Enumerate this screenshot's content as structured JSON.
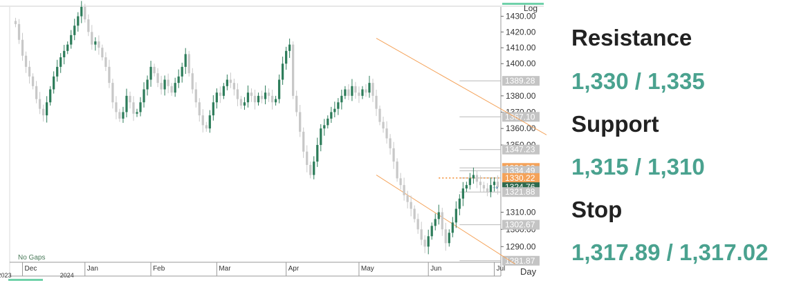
{
  "chart_data": {
    "type": "candlestick",
    "scale": "log",
    "ylim": [
      1281,
      1436
    ],
    "y_ticks": [
      "1430.00",
      "1420.00",
      "1410.00",
      "1400.00",
      "1380.00",
      "1370.00",
      "1360.00",
      "1350.00",
      "1310.00",
      "1300.00",
      "1290.00"
    ],
    "axis_corner_label": "Log",
    "x_ticks": [
      {
        "label": "Dec",
        "sub": "2023",
        "index": 2
      },
      {
        "label": "Jan",
        "sub": "2024",
        "index": 20
      },
      {
        "label": "Feb",
        "sub": "",
        "index": 39
      },
      {
        "label": "Mar",
        "sub": "",
        "index": 58
      },
      {
        "label": "Apr",
        "sub": "",
        "index": 78
      },
      {
        "label": "May",
        "sub": "",
        "index": 99
      },
      {
        "label": "Jun",
        "sub": "",
        "index": 119
      },
      {
        "label": "Jul",
        "sub": "",
        "index": 138
      }
    ],
    "timeframe_label": "Day",
    "gaps_label": "No Gaps",
    "levels": [
      {
        "label": "1389.28",
        "value": 1389.28,
        "style": "gray"
      },
      {
        "label": "1367.10",
        "value": 1367.1,
        "style": "gray"
      },
      {
        "label": "1347.23",
        "value": 1347.23,
        "style": "gray"
      },
      {
        "label": "1336.22",
        "value": 1336.22,
        "style": "orange"
      },
      {
        "label": "1334.49",
        "value": 1334.49,
        "style": "gray"
      },
      {
        "label": "1330.22",
        "value": 1330.22,
        "style": "orange"
      },
      {
        "label": "1324.76",
        "value": 1324.76,
        "style": "dark"
      },
      {
        "label": "1321.88",
        "value": 1321.88,
        "style": "gray"
      },
      {
        "label": "1302.67",
        "value": 1302.67,
        "style": "gray"
      },
      {
        "label": "1281.87",
        "value": 1281.87,
        "style": "gray"
      }
    ],
    "resistance_dotted": 1330.22,
    "channel": {
      "upper": [
        {
          "index": 104,
          "value": 1416
        },
        {
          "index": 170,
          "value": 1336
        }
      ],
      "lower": [
        {
          "index": 104,
          "value": 1332
        },
        {
          "index": 144,
          "value": 1280
        }
      ]
    },
    "closes": [
      1425,
      1415,
      1405,
      1398,
      1392,
      1386,
      1378,
      1372,
      1368,
      1376,
      1384,
      1392,
      1398,
      1404,
      1408,
      1412,
      1418,
      1424,
      1430,
      1436,
      1428,
      1420,
      1412,
      1414,
      1410,
      1404,
      1398,
      1388,
      1376,
      1370,
      1366,
      1370,
      1380,
      1376,
      1369,
      1370,
      1376,
      1384,
      1390,
      1398,
      1394,
      1388,
      1384,
      1390,
      1386,
      1382,
      1388,
      1392,
      1398,
      1406,
      1394,
      1384,
      1376,
      1368,
      1362,
      1360,
      1368,
      1376,
      1382,
      1380,
      1386,
      1390,
      1388,
      1384,
      1378,
      1374,
      1376,
      1382,
      1380,
      1376,
      1380,
      1378,
      1382,
      1380,
      1376,
      1378,
      1390,
      1400,
      1408,
      1412,
      1380,
      1370,
      1358,
      1346,
      1338,
      1332,
      1340,
      1350,
      1360,
      1362,
      1366,
      1370,
      1372,
      1376,
      1380,
      1384,
      1380,
      1386,
      1382,
      1380,
      1384,
      1382,
      1388,
      1380,
      1372,
      1364,
      1360,
      1354,
      1348,
      1340,
      1330,
      1326,
      1320,
      1316,
      1312,
      1306,
      1300,
      1294,
      1290,
      1296,
      1302,
      1306,
      1310,
      1300,
      1292,
      1298,
      1304,
      1312,
      1318,
      1324,
      1326,
      1330,
      1332,
      1328,
      1326,
      1324,
      1322,
      1326,
      1328,
      1324.76
    ]
  },
  "sidebar": {
    "resistance_title": "Resistance",
    "resistance_value": "1,330 / 1,335",
    "support_title": "Support",
    "support_value": "1,315 / 1,310",
    "stop_title": "Stop",
    "stop_value": "1,317.89 / 1,317.02"
  },
  "colors": {
    "up": "#2e7d5b",
    "down": "#c8c8c8",
    "accent": "#f4a259",
    "label_gray": "#c4c4c4",
    "label_dark": "#2e6a4e",
    "teal_bar": "#6fd1a9"
  }
}
